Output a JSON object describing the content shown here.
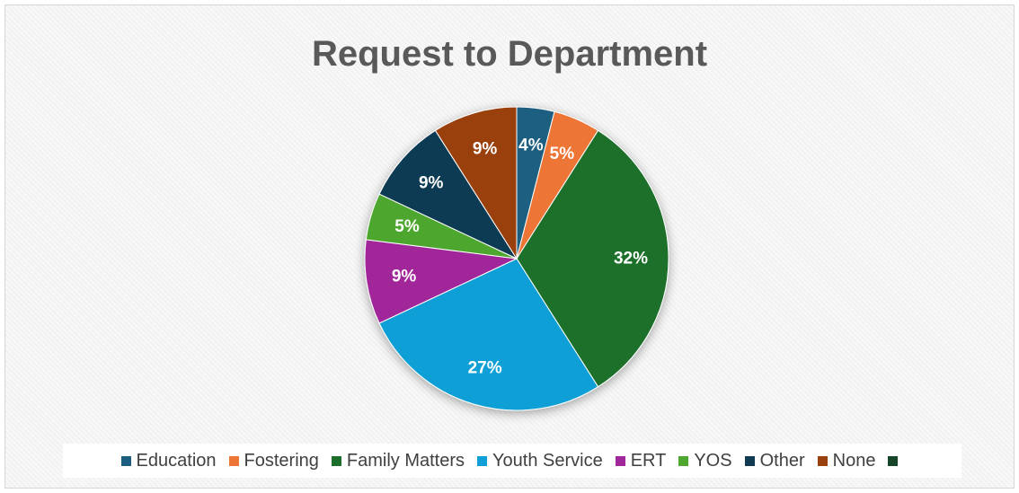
{
  "chart_data": {
    "type": "pie",
    "title": "Request to Department",
    "legend_position": "bottom",
    "slices": [
      {
        "label": "Education",
        "value": 4,
        "display": "4%",
        "color": "#1b5e80"
      },
      {
        "label": "Fostering",
        "value": 5,
        "display": "5%",
        "color": "#ed7535"
      },
      {
        "label": "Family Matters",
        "value": 32,
        "display": "32%",
        "color": "#1c6f2a"
      },
      {
        "label": "Youth Service",
        "value": 27,
        "display": "27%",
        "color": "#109fd6"
      },
      {
        "label": "ERT",
        "value": 9,
        "display": "9%",
        "color": "#a1289a"
      },
      {
        "label": "YOS",
        "value": 5,
        "display": "5%",
        "color": "#4ea72e"
      },
      {
        "label": "Other",
        "value": 9,
        "display": "9%",
        "color": "#0f3a52"
      },
      {
        "label": "None",
        "value": 9,
        "display": "9%",
        "color": "#99400f"
      }
    ],
    "extra_legend_entries": [
      {
        "label": "",
        "color": "#16462a"
      }
    ]
  }
}
